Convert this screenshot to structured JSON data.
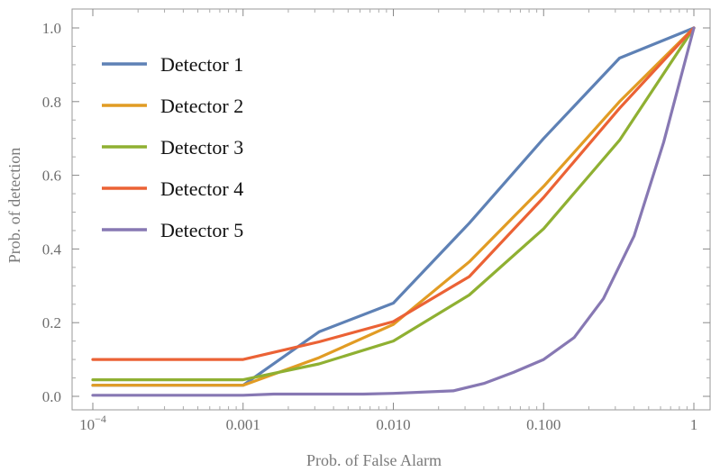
{
  "chart_data": {
    "type": "line",
    "title": "",
    "xlabel": "Prob. of False Alarm",
    "ylabel": "Prob. of detection",
    "xscale": "log",
    "xlim": [
      0.0001,
      1
    ],
    "ylim": [
      0,
      1
    ],
    "x_ticks": [
      {
        "value": 0.0001,
        "base": "10",
        "exp": "−4"
      },
      {
        "value": 0.001,
        "label": "0.001"
      },
      {
        "value": 0.01,
        "label": "0.010"
      },
      {
        "value": 0.1,
        "label": "0.100"
      },
      {
        "value": 1,
        "label": "1"
      }
    ],
    "y_ticks": [
      "0.0",
      "0.2",
      "0.4",
      "0.6",
      "0.8",
      "1.0"
    ],
    "legend_position": "top-left",
    "series": [
      {
        "name": "Detector 1",
        "color": "#5e81b5",
        "points": [
          [
            0.0001,
            0.03
          ],
          [
            0.001,
            0.03
          ],
          [
            0.0032,
            0.175
          ],
          [
            0.01,
            0.253
          ],
          [
            0.032,
            0.47
          ],
          [
            0.1,
            0.7
          ],
          [
            0.32,
            0.918
          ],
          [
            1,
            1.0
          ]
        ]
      },
      {
        "name": "Detector 2",
        "color": "#e19c24",
        "points": [
          [
            0.0001,
            0.03
          ],
          [
            0.001,
            0.03
          ],
          [
            0.0032,
            0.105
          ],
          [
            0.01,
            0.195
          ],
          [
            0.032,
            0.365
          ],
          [
            0.1,
            0.57
          ],
          [
            0.32,
            0.8
          ],
          [
            1,
            1.0
          ]
        ]
      },
      {
        "name": "Detector 3",
        "color": "#8fb032",
        "points": [
          [
            0.0001,
            0.045
          ],
          [
            0.001,
            0.045
          ],
          [
            0.0032,
            0.088
          ],
          [
            0.01,
            0.15
          ],
          [
            0.032,
            0.275
          ],
          [
            0.1,
            0.455
          ],
          [
            0.32,
            0.695
          ],
          [
            1,
            1.0
          ]
        ]
      },
      {
        "name": "Detector 4",
        "color": "#eb6235",
        "points": [
          [
            0.0001,
            0.1
          ],
          [
            0.001,
            0.1
          ],
          [
            0.0032,
            0.148
          ],
          [
            0.01,
            0.203
          ],
          [
            0.032,
            0.325
          ],
          [
            0.1,
            0.54
          ],
          [
            0.32,
            0.782
          ],
          [
            1,
            1.0
          ]
        ]
      },
      {
        "name": "Detector 5",
        "color": "#8778b3",
        "points": [
          [
            0.0001,
            0.003
          ],
          [
            0.001,
            0.003
          ],
          [
            0.0016,
            0.006
          ],
          [
            0.0063,
            0.006
          ],
          [
            0.01,
            0.008
          ],
          [
            0.025,
            0.015
          ],
          [
            0.04,
            0.035
          ],
          [
            0.063,
            0.065
          ],
          [
            0.1,
            0.1
          ],
          [
            0.16,
            0.16
          ],
          [
            0.25,
            0.265
          ],
          [
            0.4,
            0.435
          ],
          [
            0.63,
            0.69
          ],
          [
            1,
            1.0
          ]
        ]
      }
    ]
  }
}
